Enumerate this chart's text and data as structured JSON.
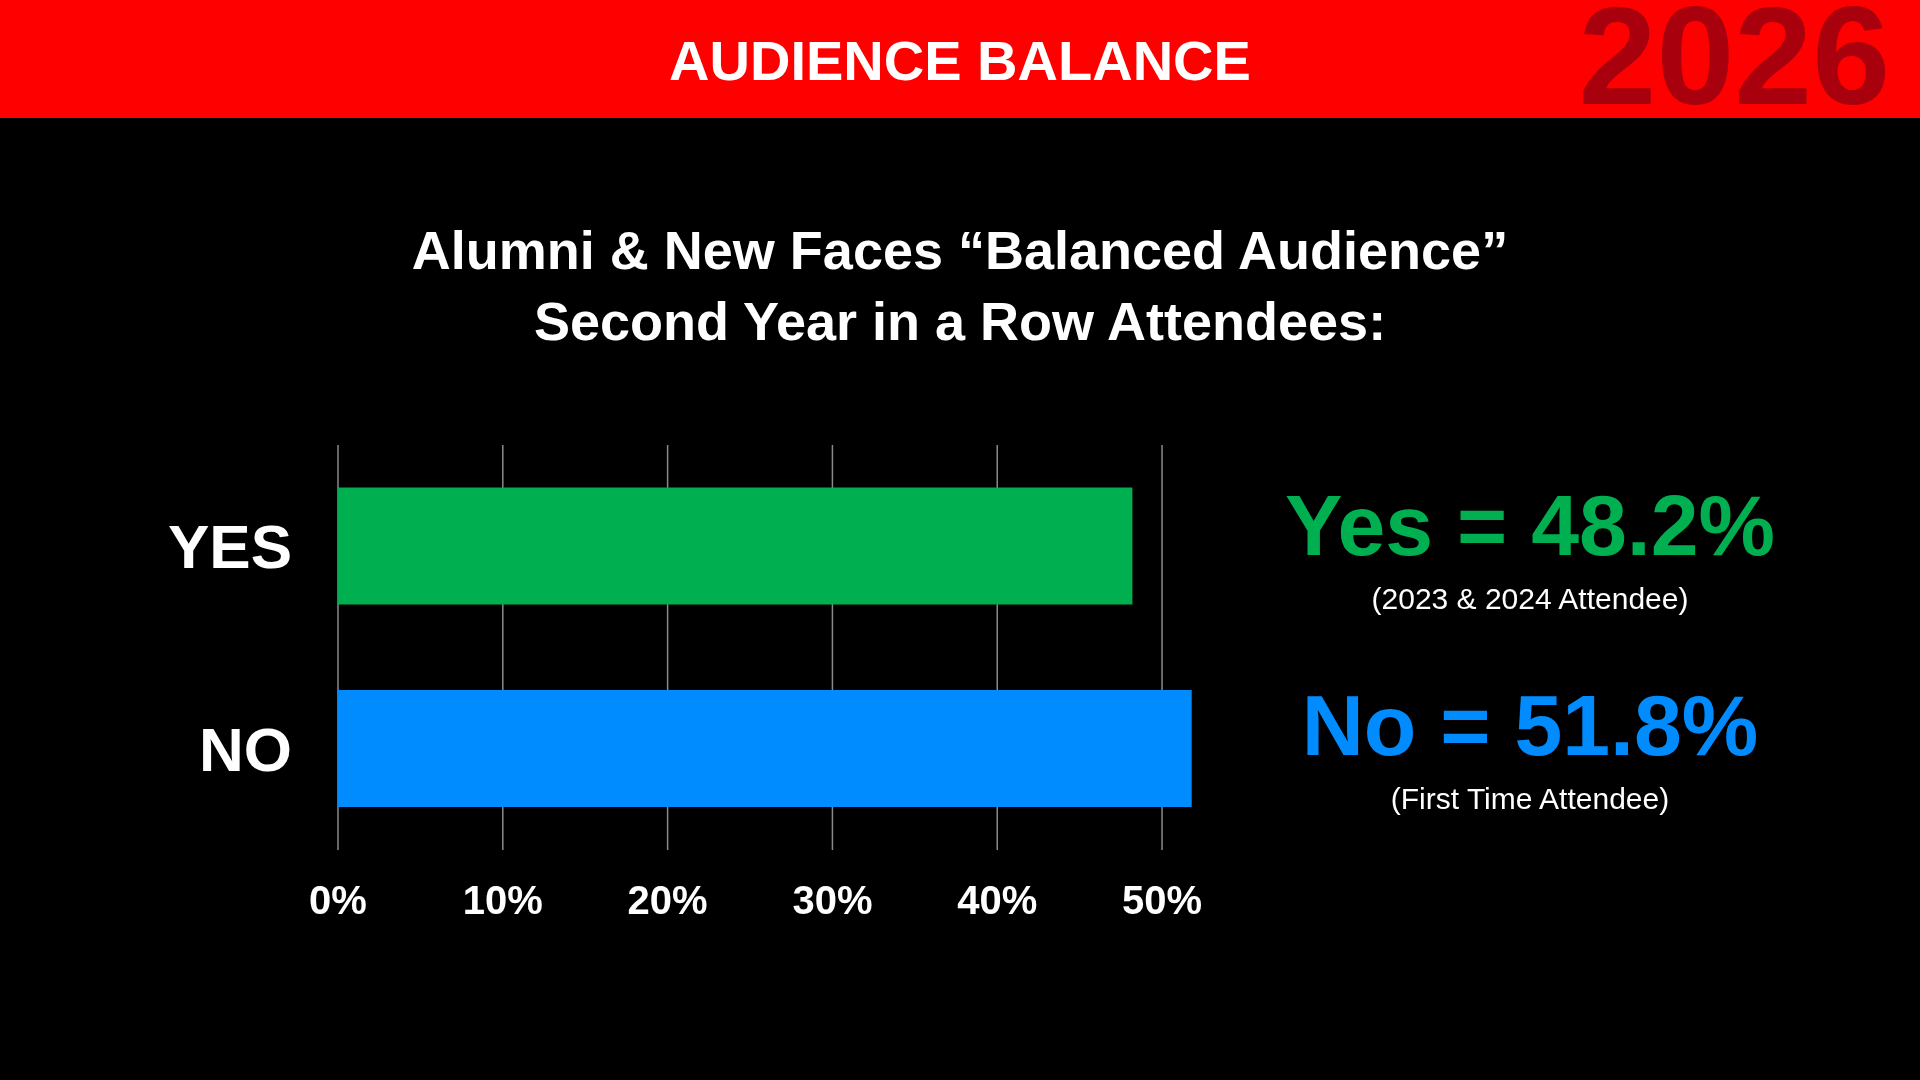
{
  "chart_data": {
    "type": "bar",
    "orientation": "horizontal",
    "title": "AUDIENCE BALANCE",
    "subtitle": "Alumni & New Faces “Balanced Audience”\nSecond Year in a Row Attendees:",
    "categories": [
      "YES",
      "NO"
    ],
    "values": [
      48.2,
      51.8
    ],
    "colors": [
      "#00b050",
      "#008cff"
    ],
    "value_labels": [
      "Yes = 48.2%",
      "No = 51.8%"
    ],
    "xlim": [
      0,
      52
    ],
    "xticks": [
      {
        "value": 0,
        "label": "0%"
      },
      {
        "value": 10,
        "label": "10%"
      },
      {
        "value": 20,
        "label": "20%"
      },
      {
        "value": 30,
        "label": "30%"
      },
      {
        "value": 40,
        "label": "40%"
      },
      {
        "value": 50,
        "label": "50%"
      }
    ],
    "grid": "x",
    "annotations": [
      "2026",
      "(2023 & 2024 Attendee)",
      "(First Time Attendee)"
    ]
  }
}
